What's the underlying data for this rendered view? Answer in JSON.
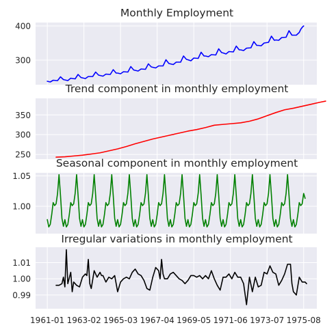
{
  "colors": {
    "background": "#eaeaf2",
    "grid": "#ffffff",
    "text": "#262626",
    "employment": "#0000ff",
    "trend": "#ff0000",
    "seasonal": "#008000",
    "irregular": "#000000"
  },
  "x_axis": {
    "start": "1961-01",
    "n_months": 176,
    "tick_labels": [
      "1961-01",
      "1963-02",
      "1965-03",
      "1967-04",
      "1969-05",
      "1971-06",
      "1973-07",
      "1975-08"
    ],
    "tick_month_offsets": [
      0,
      25,
      50,
      75,
      100,
      125,
      150,
      175
    ]
  },
  "chart_data": [
    {
      "type": "line",
      "title": "Monthly Employment",
      "ylim": [
        228,
        410
      ],
      "yticks": [
        "300",
        "400"
      ],
      "ytick_values": [
        300,
        400
      ],
      "grid": true,
      "color": "#0000ff",
      "points": [
        [
          0,
          238
        ],
        [
          2,
          236
        ],
        [
          4,
          241
        ],
        [
          7,
          240
        ],
        [
          9,
          251
        ],
        [
          11,
          243
        ],
        [
          12,
          242
        ],
        [
          14,
          240
        ],
        [
          16,
          247
        ],
        [
          19,
          245
        ],
        [
          21,
          258
        ],
        [
          23,
          249
        ],
        [
          24,
          248
        ],
        [
          26,
          246
        ],
        [
          28,
          252
        ],
        [
          31,
          252
        ],
        [
          33,
          265
        ],
        [
          35,
          256
        ],
        [
          36,
          255
        ],
        [
          38,
          253
        ],
        [
          40,
          259
        ],
        [
          43,
          258
        ],
        [
          45,
          272
        ],
        [
          47,
          262
        ],
        [
          48,
          262
        ],
        [
          50,
          260
        ],
        [
          52,
          266
        ],
        [
          55,
          265
        ],
        [
          57,
          281
        ],
        [
          59,
          271
        ],
        [
          60,
          270
        ],
        [
          62,
          268
        ],
        [
          64,
          274
        ],
        [
          67,
          273
        ],
        [
          69,
          289
        ],
        [
          71,
          280
        ],
        [
          72,
          279
        ],
        [
          74,
          277
        ],
        [
          76,
          283
        ],
        [
          79,
          283
        ],
        [
          81,
          301
        ],
        [
          83,
          290
        ],
        [
          84,
          289
        ],
        [
          86,
          287
        ],
        [
          88,
          294
        ],
        [
          91,
          294
        ],
        [
          93,
          312
        ],
        [
          95,
          302
        ],
        [
          96,
          301
        ],
        [
          98,
          298
        ],
        [
          100,
          306
        ],
        [
          103,
          305
        ],
        [
          105,
          323
        ],
        [
          107,
          312
        ],
        [
          108,
          312
        ],
        [
          110,
          310
        ],
        [
          112,
          316
        ],
        [
          115,
          315
        ],
        [
          117,
          333
        ],
        [
          119,
          322
        ],
        [
          120,
          321
        ],
        [
          122,
          318
        ],
        [
          124,
          325
        ],
        [
          127,
          324
        ],
        [
          129,
          341
        ],
        [
          131,
          330
        ],
        [
          132,
          330
        ],
        [
          134,
          328
        ],
        [
          136,
          335
        ],
        [
          139,
          336
        ],
        [
          141,
          354
        ],
        [
          143,
          343
        ],
        [
          144,
          343
        ],
        [
          146,
          342
        ],
        [
          148,
          350
        ],
        [
          151,
          352
        ],
        [
          153,
          370
        ],
        [
          155,
          358
        ],
        [
          156,
          359
        ],
        [
          158,
          358
        ],
        [
          160,
          366
        ],
        [
          163,
          367
        ],
        [
          165,
          386
        ],
        [
          167,
          373
        ],
        [
          168,
          373
        ],
        [
          170,
          373
        ],
        [
          172,
          381
        ],
        [
          173,
          390
        ],
        [
          174,
          396
        ],
        [
          175,
          400
        ]
      ]
    },
    {
      "type": "line",
      "title": "Trend component in monthly employment",
      "ylim": [
        238,
        392
      ],
      "yticks": [
        "250",
        "300",
        "350"
      ],
      "ytick_values": [
        250,
        300,
        350
      ],
      "grid": true,
      "color": "#ff0000",
      "points": [
        [
          6,
          243
        ],
        [
          12,
          244
        ],
        [
          18,
          246
        ],
        [
          24,
          248
        ],
        [
          30,
          251
        ],
        [
          36,
          254
        ],
        [
          42,
          259
        ],
        [
          48,
          264
        ],
        [
          54,
          270
        ],
        [
          60,
          277
        ],
        [
          66,
          283
        ],
        [
          72,
          289
        ],
        [
          78,
          294
        ],
        [
          84,
          299
        ],
        [
          90,
          304
        ],
        [
          96,
          309
        ],
        [
          102,
          313
        ],
        [
          108,
          318
        ],
        [
          114,
          324
        ],
        [
          120,
          326
        ],
        [
          126,
          328
        ],
        [
          132,
          330
        ],
        [
          138,
          334
        ],
        [
          144,
          340
        ],
        [
          150,
          348
        ],
        [
          156,
          356
        ],
        [
          162,
          363
        ],
        [
          168,
          367
        ],
        [
          174,
          372
        ],
        [
          180,
          377
        ],
        [
          186,
          382
        ],
        [
          190,
          385
        ]
      ]
    },
    {
      "type": "line",
      "title": "Seasonal component in monthly employment",
      "ylim": [
        0.955,
        1.055
      ],
      "yticks": [
        "1.00",
        "1.05"
      ],
      "ytick_values": [
        1.0,
        1.05
      ],
      "grid": true,
      "color": "#008000",
      "pattern": [
        0.978,
        0.966,
        0.97,
        0.986,
        1.006,
        1.001,
        1.004,
        1.021,
        1.052,
        1.018,
        0.98,
        0.967
      ],
      "final_value": 1.013
    },
    {
      "type": "line",
      "title": "Irregular variations in monthly employment",
      "ylim": [
        0.9815,
        1.0195
      ],
      "yticks": [
        "0.99",
        "1.00",
        "1.01"
      ],
      "ytick_values": [
        0.99,
        1.0,
        1.01
      ],
      "grid": true,
      "color": "#000000",
      "points": [
        [
          6,
          0.996
        ],
        [
          8,
          0.996
        ],
        [
          10,
          0.997
        ],
        [
          11,
          1.001
        ],
        [
          12,
          0.995
        ],
        [
          13,
          1.018
        ],
        [
          14,
          0.997
        ],
        [
          16,
          1.004
        ],
        [
          17,
          0.992
        ],
        [
          18,
          0.998
        ],
        [
          20,
          0.996
        ],
        [
          22,
          0.995
        ],
        [
          24,
          1.001
        ],
        [
          26,
          1.003
        ],
        [
          27,
          1.002
        ],
        [
          28,
          1.012
        ],
        [
          29,
          0.997
        ],
        [
          30,
          0.994
        ],
        [
          32,
          1.005
        ],
        [
          34,
          1.001
        ],
        [
          36,
          1.004
        ],
        [
          37,
          1.002
        ],
        [
          38,
          1.002
        ],
        [
          40,
          0.998
        ],
        [
          42,
          1.001
        ],
        [
          44,
          1.0
        ],
        [
          46,
          1.002
        ],
        [
          48,
          0.992
        ],
        [
          50,
          0.998
        ],
        [
          52,
          1.0
        ],
        [
          54,
          1.001
        ],
        [
          56,
          1.0
        ],
        [
          58,
          1.004
        ],
        [
          60,
          1.006
        ],
        [
          62,
          1.003
        ],
        [
          64,
          1.002
        ],
        [
          66,
          0.999
        ],
        [
          68,
          0.994
        ],
        [
          70,
          0.993
        ],
        [
          72,
          1.001
        ],
        [
          74,
          1.007
        ],
        [
          76,
          1.005
        ],
        [
          77,
          1.0
        ],
        [
          78,
          1.012
        ],
        [
          79,
          1.003
        ],
        [
          80,
          1.0
        ],
        [
          82,
          1.0
        ],
        [
          84,
          1.003
        ],
        [
          86,
          1.004
        ],
        [
          88,
          1.002
        ],
        [
          90,
          1.0
        ],
        [
          92,
          0.999
        ],
        [
          94,
          0.997
        ],
        [
          96,
          0.999
        ],
        [
          98,
          1.002
        ],
        [
          100,
          1.002
        ],
        [
          102,
          1.001
        ],
        [
          104,
          1.002
        ],
        [
          106,
          1.0
        ],
        [
          108,
          1.002
        ],
        [
          110,
          1.0
        ],
        [
          112,
          1.005
        ],
        [
          114,
          1.0
        ],
        [
          116,
          0.996
        ],
        [
          118,
          0.993
        ],
        [
          120,
          1.001
        ],
        [
          122,
          1.001
        ],
        [
          124,
          1.003
        ],
        [
          126,
          1.0
        ],
        [
          128,
          1.004
        ],
        [
          130,
          1.001
        ],
        [
          132,
          1.001
        ],
        [
          134,
          0.997
        ],
        [
          136,
          0.984
        ],
        [
          138,
          1.001
        ],
        [
          140,
          0.992
        ],
        [
          142,
          1.001
        ],
        [
          144,
          0.995
        ],
        [
          146,
          0.996
        ],
        [
          148,
          1.004
        ],
        [
          150,
          1.003
        ],
        [
          152,
          1.008
        ],
        [
          154,
          1.004
        ],
        [
          156,
          1.003
        ],
        [
          158,
          0.996
        ],
        [
          160,
          0.999
        ],
        [
          162,
          1.003
        ],
        [
          164,
          1.009
        ],
        [
          166,
          1.009
        ],
        [
          167,
          0.997
        ],
        [
          168,
          0.992
        ],
        [
          170,
          0.99
        ],
        [
          172,
          1.001
        ],
        [
          174,
          0.998
        ],
        [
          176,
          0.998
        ],
        [
          177,
          0.997
        ]
      ]
    }
  ]
}
